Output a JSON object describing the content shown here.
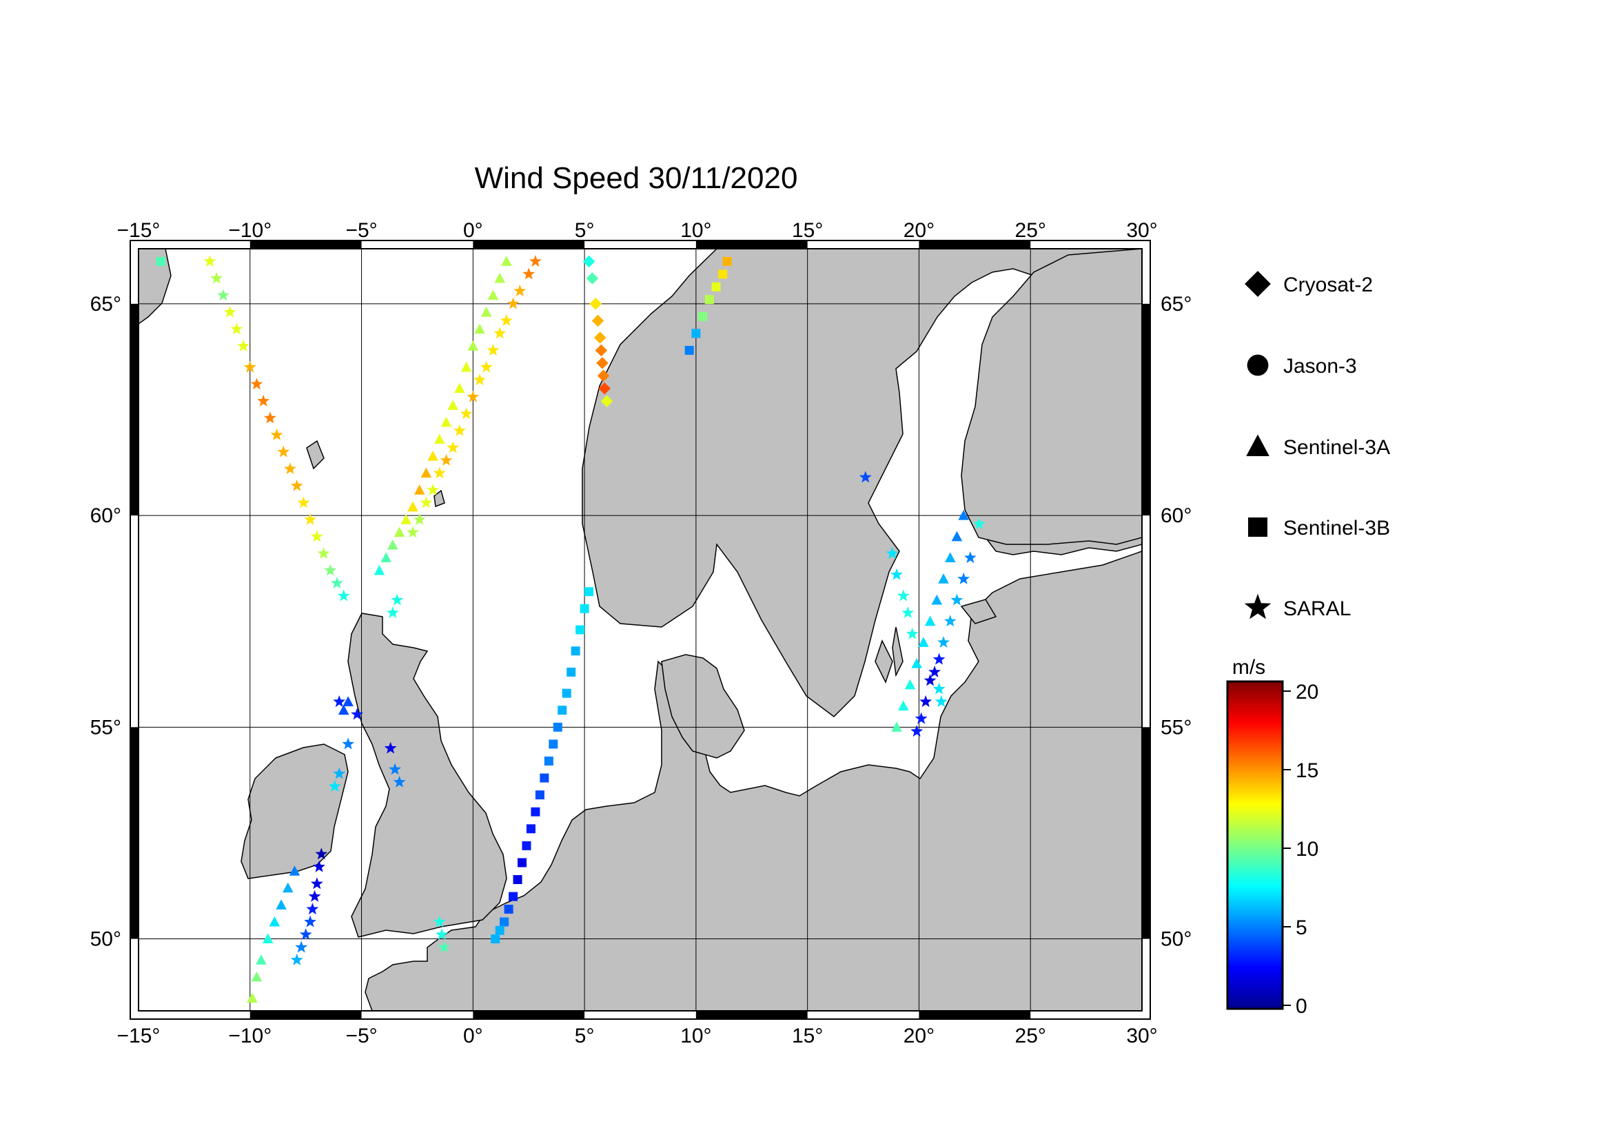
{
  "title": "Wind Speed 30/11/2020",
  "map": {
    "lon_range": [
      -15,
      30
    ],
    "lat_range": [
      48.3,
      66.3
    ],
    "lon_ticks": [
      -15,
      -10,
      -5,
      0,
      5,
      10,
      15,
      20,
      25,
      30
    ],
    "lat_ticks": [
      50,
      55,
      60,
      65
    ],
    "lon_tick_labels": [
      "−15°",
      "−10°",
      "−5°",
      "0°",
      "5°",
      "10°",
      "15°",
      "20°",
      "25°",
      "30°"
    ],
    "lat_tick_labels": [
      "50°",
      "55°",
      "60°",
      "65°"
    ],
    "land_color": "#c0c0c0",
    "sea_color": "#ffffff",
    "grid": true
  },
  "legend": {
    "items": [
      {
        "label": "Cryosat-2",
        "symbol": "diamond"
      },
      {
        "label": "Jason-3",
        "symbol": "circle"
      },
      {
        "label": "Sentinel-3A",
        "symbol": "triangle"
      },
      {
        "label": "Sentinel-3B",
        "symbol": "square"
      },
      {
        "label": "SARAL",
        "symbol": "star"
      }
    ]
  },
  "colorbar": {
    "unit": "m/s",
    "min": 0,
    "max": 20,
    "ticks": [
      0,
      5,
      10,
      15,
      20
    ],
    "tick_labels": [
      "0",
      "5",
      "10",
      "15",
      "20"
    ],
    "colormap": "jet"
  },
  "chart_data": {
    "type": "scatter",
    "value_unit": "m/s",
    "tracks": [
      {
        "satellite": "Cryosat-2",
        "symbol": "diamond",
        "lon": [
          5.2,
          5.35,
          5.5,
          5.6,
          5.7,
          5.75,
          5.8,
          5.85,
          5.9,
          6.0
        ],
        "lat": [
          66.0,
          65.6,
          65.0,
          64.6,
          64.2,
          63.9,
          63.6,
          63.3,
          63.0,
          62.7
        ],
        "speed": [
          8,
          9,
          13,
          14,
          14,
          15,
          15,
          15,
          16,
          12
        ]
      },
      {
        "satellite": "Sentinel-3A",
        "symbol": "triangle",
        "lon": [
          1.5,
          1.2,
          0.9,
          0.6,
          0.3,
          0.0,
          -0.3,
          -0.6,
          -0.9,
          -1.2,
          -1.5,
          -1.8,
          -2.1,
          -2.4,
          -2.7,
          -3.0,
          -3.3,
          -3.6,
          -3.9,
          -4.2
        ],
        "lat": [
          66.0,
          65.6,
          65.2,
          64.8,
          64.4,
          64.0,
          63.5,
          63.0,
          62.6,
          62.2,
          61.8,
          61.4,
          61.0,
          60.6,
          60.2,
          59.9,
          59.6,
          59.3,
          59.0,
          58.7
        ],
        "speed": [
          11,
          11,
          11,
          11,
          11,
          11,
          12,
          12,
          12,
          12,
          12,
          13,
          14,
          14,
          13,
          12,
          11,
          10,
          9,
          8
        ]
      },
      {
        "satellite": "Sentinel-3A",
        "symbol": "triangle",
        "lon": [
          -5.8,
          -5.6
        ],
        "lat": [
          55.4,
          55.6
        ],
        "speed": [
          4,
          4
        ]
      },
      {
        "satellite": "Sentinel-3A",
        "symbol": "triangle",
        "lon": [
          -8.0,
          -8.3,
          -8.6,
          -8.9,
          -9.2,
          -9.5,
          -9.7,
          -9.9
        ],
        "lat": [
          51.6,
          51.2,
          50.8,
          50.4,
          50.0,
          49.5,
          49.1,
          48.6
        ],
        "speed": [
          5,
          6,
          6,
          7,
          8,
          9,
          10,
          11
        ]
      },
      {
        "satellite": "Sentinel-3A",
        "symbol": "triangle",
        "lon": [
          22.0,
          21.7,
          21.4,
          21.1,
          20.8,
          20.5,
          20.2,
          19.9,
          19.6,
          19.3,
          19.0
        ],
        "lat": [
          60.0,
          59.5,
          59.0,
          58.5,
          58.0,
          57.5,
          57.0,
          56.5,
          56.0,
          55.5,
          55.0
        ],
        "speed": [
          5,
          5,
          6,
          6,
          6,
          7,
          7,
          7,
          8,
          8,
          9
        ]
      },
      {
        "satellite": "Sentinel-3B",
        "symbol": "square",
        "lon": [
          -14.0
        ],
        "lat": [
          66.0
        ],
        "speed": [
          9
        ]
      },
      {
        "satellite": "Sentinel-3B",
        "symbol": "square",
        "lon": [
          11.4,
          11.2,
          10.9,
          10.6,
          10.3,
          10.0,
          9.7
        ],
        "lat": [
          66.0,
          65.7,
          65.4,
          65.1,
          64.7,
          64.3,
          63.9
        ],
        "speed": [
          14,
          13,
          12,
          11,
          10,
          6,
          5
        ]
      },
      {
        "satellite": "Sentinel-3B",
        "symbol": "square",
        "lon": [
          5.2,
          5.0,
          4.8,
          4.6,
          4.4,
          4.2,
          4.0,
          3.8,
          3.6,
          3.4,
          3.2,
          3.0,
          2.8,
          2.6,
          2.4,
          2.2,
          2.0,
          1.8,
          1.6,
          1.4,
          1.2,
          1.0
        ],
        "lat": [
          58.2,
          57.8,
          57.3,
          56.8,
          56.3,
          55.8,
          55.4,
          55.0,
          54.6,
          54.2,
          53.8,
          53.4,
          53.0,
          52.6,
          52.2,
          51.8,
          51.4,
          51.0,
          50.7,
          50.4,
          50.2,
          50.0
        ],
        "speed": [
          7,
          7,
          7,
          6,
          6,
          6,
          6,
          5,
          5,
          5,
          4,
          4,
          3,
          3,
          3,
          2,
          2,
          3,
          4,
          5,
          6,
          6
        ]
      },
      {
        "satellite": "SARAL",
        "symbol": "star",
        "lon": [
          -11.8,
          -11.5,
          -11.2,
          -10.9,
          -10.6,
          -10.3,
          -10.0,
          -9.7,
          -9.4,
          -9.1,
          -8.8,
          -8.5,
          -8.2,
          -7.9,
          -7.6,
          -7.3,
          -7.0,
          -6.7,
          -6.4,
          -6.1,
          -5.8
        ],
        "lat": [
          66.0,
          65.6,
          65.2,
          64.8,
          64.4,
          64.0,
          63.5,
          63.1,
          62.7,
          62.3,
          61.9,
          61.5,
          61.1,
          60.7,
          60.3,
          59.9,
          59.5,
          59.1,
          58.7,
          58.4,
          58.1
        ],
        "speed": [
          12,
          11,
          10,
          12,
          12,
          12,
          14,
          15,
          15,
          15,
          14,
          14,
          14,
          14,
          13,
          13,
          12,
          11,
          10,
          9,
          8
        ]
      },
      {
        "satellite": "SARAL",
        "symbol": "star",
        "lon": [
          2.8,
          2.5,
          2.1,
          1.8,
          1.5,
          1.2,
          0.9,
          0.6,
          0.3,
          0.0,
          -0.3,
          -0.6,
          -0.9,
          -1.2,
          -1.5,
          -1.8,
          -2.1,
          -2.4,
          -2.7
        ],
        "lat": [
          66.0,
          65.7,
          65.3,
          65.0,
          64.6,
          64.3,
          63.9,
          63.5,
          63.2,
          62.8,
          62.4,
          62.0,
          61.6,
          61.3,
          61.0,
          60.6,
          60.3,
          59.9,
          59.6
        ],
        "speed": [
          15,
          15,
          14,
          14,
          13,
          13,
          13,
          13,
          13,
          14,
          13,
          13,
          13,
          14,
          13,
          12,
          12,
          11,
          11
        ]
      },
      {
        "satellite": "SARAL",
        "symbol": "star",
        "lon": [
          -3.4,
          -3.6
        ],
        "lat": [
          58.0,
          57.7
        ],
        "speed": [
          8,
          8
        ]
      },
      {
        "satellite": "SARAL",
        "symbol": "star",
        "lon": [
          -6.0,
          -5.2,
          -5.6,
          -3.7,
          -3.5,
          -3.3
        ],
        "lat": [
          55.6,
          55.3,
          54.6,
          54.5,
          54.0,
          53.7
        ],
        "speed": [
          3,
          3,
          5,
          2,
          5,
          5
        ]
      },
      {
        "satellite": "SARAL",
        "symbol": "star",
        "lon": [
          -6.0,
          -6.2
        ],
        "lat": [
          53.9,
          53.6
        ],
        "speed": [
          6,
          7
        ]
      },
      {
        "satellite": "SARAL",
        "symbol": "star",
        "lon": [
          -6.8,
          -6.9,
          -7.0,
          -7.1,
          -7.2,
          -7.3,
          -7.5,
          -7.7,
          -7.9
        ],
        "lat": [
          52.0,
          51.7,
          51.3,
          51.0,
          50.7,
          50.4,
          50.1,
          49.8,
          49.5
        ],
        "speed": [
          1,
          2,
          2,
          2,
          3,
          4,
          4,
          5,
          6
        ]
      },
      {
        "satellite": "SARAL",
        "symbol": "star",
        "lon": [
          -1.5,
          -1.4,
          -1.3
        ],
        "lat": [
          50.4,
          50.1,
          49.8
        ],
        "speed": [
          8,
          8,
          9
        ]
      },
      {
        "satellite": "SARAL",
        "symbol": "star",
        "lon": [
          17.6
        ],
        "lat": [
          60.9
        ],
        "speed": [
          4
        ]
      },
      {
        "satellite": "SARAL",
        "symbol": "star",
        "lon": [
          18.8,
          19.0,
          19.3,
          19.5,
          19.7
        ],
        "lat": [
          59.1,
          58.6,
          58.1,
          57.7,
          57.2
        ],
        "speed": [
          7,
          7,
          8,
          8,
          8
        ]
      },
      {
        "satellite": "SARAL",
        "symbol": "star",
        "lon": [
          22.7,
          22.3,
          22.0,
          21.7,
          21.4,
          21.1,
          20.9,
          20.7,
          20.5,
          20.3,
          20.1,
          19.9
        ],
        "lat": [
          59.8,
          59.0,
          58.5,
          58.0,
          57.5,
          57.0,
          56.6,
          56.3,
          56.1,
          55.6,
          55.2,
          54.9
        ],
        "speed": [
          8,
          5,
          5,
          6,
          6,
          6,
          3,
          2,
          2,
          2,
          3,
          3
        ]
      },
      {
        "satellite": "SARAL",
        "symbol": "star",
        "lon": [
          20.9,
          21.0
        ],
        "lat": [
          55.9,
          55.6
        ],
        "speed": [
          7,
          7
        ]
      }
    ]
  }
}
